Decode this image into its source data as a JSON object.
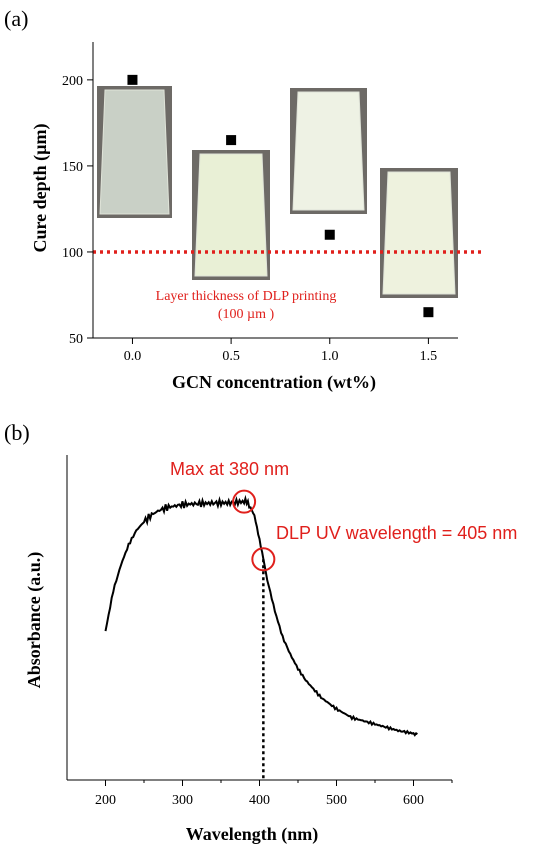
{
  "chart_data": [
    {
      "type": "scatter",
      "panel_label": "(a)",
      "xlabel": "GCN concentration (wt%)",
      "ylabel": "Cure depth (µm)",
      "xlim": [
        -0.2,
        1.65
      ],
      "ylim": [
        50,
        222
      ],
      "x_ticks": [
        0.0,
        0.5,
        1.0,
        1.5
      ],
      "x_tick_labels": [
        "0.0",
        "0.5",
        "1.0",
        "1.5"
      ],
      "y_ticks": [
        50,
        100,
        150,
        200
      ],
      "y_tick_labels": [
        "50",
        "100",
        "150",
        "200"
      ],
      "series": [
        {
          "x": [
            0.0,
            0.5,
            1.0,
            1.5
          ],
          "y": [
            200,
            165,
            110,
            65
          ],
          "marker": "square",
          "color": "#000000"
        }
      ],
      "reference_line": {
        "y": 100,
        "style": "dotted",
        "color": "#e0201c"
      },
      "annotations": [
        "Layer thickness of DLP printing",
        "(100 µm )"
      ],
      "inset_images": [
        {
          "x": 0.0,
          "tint": "#c9d0c6",
          "description": "clear cured sample"
        },
        {
          "x": 0.5,
          "tint": "#e9f0d6",
          "description": "pale yellow cured sample"
        },
        {
          "x": 1.0,
          "tint": "#eef2e4",
          "description": "pale cured sample"
        },
        {
          "x": 1.5,
          "tint": "#eef2de",
          "description": "pale cured sample"
        }
      ],
      "grid": false
    },
    {
      "type": "line",
      "panel_label": "(b)",
      "xlabel": "Wavelength (nm)",
      "ylabel": "Absorbance (a.u.)",
      "xlim": [
        150,
        650
      ],
      "ylim": [
        0,
        1.0
      ],
      "x_ticks": [
        200,
        300,
        400,
        500,
        600
      ],
      "x_tick_labels": [
        "200",
        "300",
        "400",
        "500",
        "600"
      ],
      "y_tick_labels": [],
      "series": [
        {
          "x": [
            200,
            210,
            220,
            230,
            240,
            250,
            260,
            270,
            280,
            290,
            300,
            320,
            340,
            360,
            370,
            380,
            385,
            390,
            395,
            400,
            405,
            410,
            420,
            430,
            440,
            450,
            460,
            470,
            480,
            490,
            500,
            520,
            540,
            560,
            580,
            600,
            605
          ],
          "y": [
            0.44,
            0.58,
            0.67,
            0.74,
            0.79,
            0.82,
            0.845,
            0.86,
            0.87,
            0.875,
            0.88,
            0.883,
            0.885,
            0.886,
            0.888,
            0.89,
            0.885,
            0.865,
            0.82,
            0.76,
            0.69,
            0.62,
            0.51,
            0.42,
            0.36,
            0.31,
            0.27,
            0.24,
            0.21,
            0.19,
            0.17,
            0.14,
            0.125,
            0.11,
            0.095,
            0.085,
            0.083
          ],
          "color": "#000000"
        }
      ],
      "reference_line": {
        "x": 405,
        "style": "dotted",
        "color": "#000000"
      },
      "annotations": [
        "Max at 380 nm",
        "DLP UV wavelength = 405 nm"
      ],
      "highlight_points": [
        {
          "x": 380,
          "y": 0.89
        },
        {
          "x": 405,
          "y": 0.69
        }
      ],
      "grid": false
    }
  ]
}
